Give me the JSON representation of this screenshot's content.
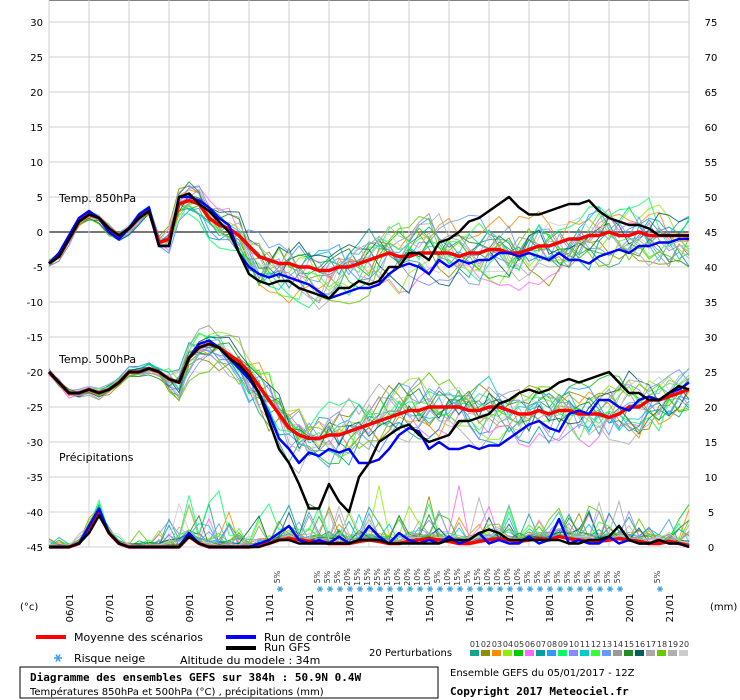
{
  "chart_data": {
    "type": "line",
    "title": "Diagramme des ensembles GEFS sur 384h : 50.9N 0.4W",
    "subtitle": "Températures 850hPa et 500hPa (°C) , précipitations (mm)",
    "left_axis": {
      "unit_label": "(°c)",
      "ticks": [
        30,
        25,
        20,
        15,
        10,
        5,
        0,
        -5,
        -10,
        -15,
        -20,
        -25,
        -30,
        -35,
        -40,
        -45
      ]
    },
    "right_axis": {
      "unit_label": "(mm)",
      "ticks": [
        75,
        70,
        65,
        60,
        55,
        50,
        45,
        40,
        35,
        30,
        25,
        20,
        15,
        10,
        5,
        0
      ]
    },
    "x_dates": [
      "06/01",
      "07/01",
      "08/01",
      "09/01",
      "10/01",
      "11/01",
      "12/01",
      "13/01",
      "14/01",
      "15/01",
      "16/01",
      "17/01",
      "18/01",
      "19/01",
      "20/01",
      "21/01"
    ],
    "panel_labels": {
      "t850": "Temp. 850hPa",
      "t500": "Temp. 500hPa",
      "precip": "Précipitations"
    },
    "x_hours": [
      0,
      6,
      12,
      18,
      24,
      30,
      36,
      42,
      48,
      54,
      60,
      66,
      72,
      78,
      84,
      90,
      96,
      102,
      108,
      114,
      120,
      126,
      132,
      138,
      144,
      150,
      156,
      162,
      168,
      174,
      180,
      186,
      192,
      198,
      204,
      210,
      216,
      222,
      228,
      234,
      240,
      246,
      252,
      258,
      264,
      270,
      276,
      282,
      288,
      294,
      300,
      306,
      312,
      318,
      324,
      330,
      336,
      342,
      348,
      354,
      360,
      366,
      372,
      378,
      384
    ],
    "series": [
      {
        "name": "Moyenne des scénarios",
        "color": "#ff0000",
        "group": "t850",
        "values": [
          -4.5,
          -3.5,
          -1,
          1.5,
          2.5,
          2,
          0.5,
          -0.5,
          0.5,
          2,
          3,
          -1.5,
          -1,
          4,
          4.5,
          4,
          2,
          1,
          0.5,
          -0.5,
          -2,
          -3.5,
          -4,
          -4.5,
          -4.5,
          -5,
          -5,
          -5.5,
          -5.5,
          -5,
          -5,
          -4.5,
          -4,
          -3.5,
          -3,
          -3.5,
          -3.5,
          -3,
          -3,
          -3,
          -3,
          -3.5,
          -3,
          -3,
          -2.5,
          -2.5,
          -3,
          -3,
          -2.5,
          -2,
          -2,
          -1.5,
          -1,
          -1,
          -0.5,
          -0.5,
          0,
          -0.5,
          -0.5,
          0,
          -0.5,
          -0.5,
          -0.5,
          -0.5,
          -0.5
        ]
      },
      {
        "name": "Run de contrôle",
        "color": "#0000ff",
        "group": "t850",
        "values": [
          -4.5,
          -3,
          -0.5,
          2,
          3,
          2,
          0,
          -1,
          0.5,
          2.5,
          3.5,
          -2,
          -2,
          5,
          5,
          4.5,
          3.5,
          2,
          1,
          -3,
          -5,
          -6,
          -6.5,
          -6,
          -6.5,
          -7,
          -7.5,
          -8.5,
          -9.5,
          -9,
          -8.5,
          -8,
          -8,
          -7.5,
          -6,
          -5,
          -4.5,
          -5,
          -6,
          -4,
          -5,
          -4,
          -4.5,
          -4,
          -4,
          -3,
          -3,
          -3.5,
          -3,
          -3.5,
          -4,
          -3,
          -4,
          -4,
          -4.5,
          -3.5,
          -3,
          -2.5,
          -3,
          -2,
          -2,
          -1.5,
          -1.5,
          -1,
          -1
        ]
      },
      {
        "name": "Run GFS",
        "color": "#000000",
        "group": "t850",
        "values": [
          -4.5,
          -3.5,
          -1,
          1.5,
          2.5,
          2,
          0.5,
          -0.5,
          0.5,
          2,
          3,
          -2,
          -2,
          5,
          5.5,
          4,
          3,
          1.5,
          0,
          -3,
          -6,
          -7,
          -7.5,
          -7,
          -7,
          -8,
          -8.5,
          -9,
          -9.5,
          -8,
          -8,
          -7,
          -7.5,
          -7,
          -5,
          -5,
          -3,
          -3,
          -4,
          -1.5,
          -1,
          0,
          1.5,
          2,
          3,
          4,
          5,
          3.5,
          2.5,
          2.5,
          3,
          3.5,
          4,
          4,
          4.5,
          3,
          2,
          1.5,
          1,
          1,
          0.5,
          -0.5,
          -0.5,
          -0.5,
          -0.5
        ]
      },
      {
        "name": "Moyenne des scénarios",
        "color": "#ff0000",
        "group": "t500",
        "values": [
          -20,
          -21.5,
          -23,
          -23,
          -22.5,
          -23,
          -22.5,
          -21.5,
          -20,
          -20,
          -19.5,
          -20,
          -21,
          -21.5,
          -18,
          -16.5,
          -16,
          -16.5,
          -17.5,
          -18.5,
          -20,
          -22,
          -24,
          -26,
          -28,
          -29,
          -29.5,
          -29.5,
          -29,
          -29,
          -28.5,
          -28,
          -27.5,
          -27,
          -26.5,
          -26,
          -25.5,
          -25.5,
          -25,
          -25,
          -25,
          -25,
          -25.5,
          -25.5,
          -25,
          -25,
          -25.5,
          -26,
          -26,
          -25.5,
          -26,
          -25.5,
          -25.5,
          -26,
          -26,
          -26,
          -26.5,
          -26,
          -25,
          -25,
          -24,
          -24,
          -23.5,
          -23,
          -22.5
        ]
      },
      {
        "name": "Run de contrôle",
        "color": "#0000ff",
        "group": "t500",
        "values": [
          -20,
          -21.5,
          -23,
          -23,
          -22.5,
          -23,
          -22.5,
          -21.5,
          -20,
          -20,
          -19.5,
          -20,
          -21,
          -21.5,
          -18,
          -16,
          -15.5,
          -16.5,
          -18,
          -19.5,
          -21,
          -23,
          -26,
          -29.5,
          -31,
          -33,
          -31.5,
          -32,
          -31,
          -31.5,
          -31,
          -33,
          -33,
          -32.5,
          -31,
          -29,
          -28,
          -28.5,
          -31,
          -30,
          -31,
          -31,
          -30.5,
          -31,
          -30.5,
          -30.5,
          -29.5,
          -28.5,
          -27.5,
          -27,
          -28,
          -28.5,
          -26,
          -25.5,
          -26,
          -24,
          -24,
          -25,
          -25.5,
          -24,
          -23.5,
          -24,
          -23,
          -22.5,
          -21.5
        ]
      },
      {
        "name": "Run GFS",
        "color": "#000000",
        "group": "t500",
        "values": [
          -20,
          -21.5,
          -23,
          -23,
          -22.5,
          -23,
          -22.5,
          -21.5,
          -20,
          -20,
          -19.5,
          -20,
          -21,
          -21.5,
          -18,
          -16.5,
          -16,
          -16.5,
          -18,
          -19,
          -20.5,
          -23,
          -27,
          -31,
          -33,
          -36,
          -39.5,
          -39.5,
          -36,
          -38.5,
          -40,
          -35,
          -33,
          -30,
          -29,
          -28,
          -27.5,
          -29,
          -30,
          -29.5,
          -29,
          -27,
          -27,
          -26.5,
          -26,
          -24.5,
          -24,
          -23,
          -22.5,
          -23,
          -22.5,
          -21.5,
          -21,
          -21.5,
          -21,
          -20.5,
          -20,
          -21.5,
          -23,
          -23,
          -24,
          -24,
          -23,
          -22,
          -22.5
        ]
      },
      {
        "name": "Moyenne des scénarios",
        "color": "#ff0000",
        "group": "precip",
        "values": [
          0,
          0,
          0,
          0.5,
          2.5,
          5,
          2,
          0.5,
          0,
          0,
          0,
          0,
          0,
          0,
          1.5,
          0.5,
          0,
          0,
          0,
          0,
          0,
          0.2,
          0.5,
          1,
          1.2,
          1,
          0.8,
          0.8,
          0.5,
          0.5,
          0.5,
          0.8,
          1,
          0.8,
          0.5,
          0.5,
          0.8,
          1,
          1.2,
          1,
          0.8,
          0.5,
          0.5,
          0.8,
          1,
          1.2,
          1,
          0.8,
          1,
          1.2,
          1,
          1.5,
          1.2,
          1,
          0.8,
          0.8,
          1,
          1.2,
          1,
          0.8,
          0.5,
          0.5,
          0.8,
          0.5,
          0.2
        ]
      },
      {
        "name": "Run de contrôle",
        "color": "#0000ff",
        "group": "precip",
        "values": [
          0,
          0,
          0,
          0.5,
          3,
          5.5,
          2,
          0.5,
          0,
          0,
          0,
          0,
          0,
          0,
          2,
          0.5,
          0,
          0,
          0,
          0,
          0,
          0.5,
          1,
          2,
          3,
          1,
          0.5,
          1,
          0.5,
          1.5,
          0.5,
          1,
          3,
          1.5,
          0.5,
          2,
          1,
          0.5,
          1,
          0.5,
          1.5,
          0.5,
          1,
          2,
          0.5,
          1,
          0.5,
          0.5,
          1.5,
          0.5,
          1,
          4,
          0.5,
          1,
          0.5,
          0.5,
          1.5,
          0.5,
          1,
          0.5,
          0.5,
          1,
          0.5,
          0.5,
          0
        ]
      },
      {
        "name": "Run GFS",
        "color": "#000000",
        "group": "precip",
        "values": [
          0,
          0,
          0,
          0.5,
          2,
          4.5,
          2,
          0.5,
          0,
          0,
          0,
          0,
          0,
          0,
          1.5,
          0.5,
          0,
          0,
          0,
          0,
          0,
          0,
          0.5,
          1,
          1,
          0.5,
          0.5,
          0.5,
          0.5,
          0.5,
          0.5,
          1,
          1,
          1,
          0.5,
          0.5,
          0.5,
          0.5,
          0.5,
          0.5,
          1,
          1,
          1,
          2,
          2.5,
          2,
          1,
          1,
          1,
          1,
          1,
          1,
          0.5,
          0.5,
          1,
          1,
          1.5,
          3,
          1,
          0.5,
          0.5,
          1,
          0.5,
          0.5,
          0
        ]
      }
    ],
    "snow_risk_pct": [
      "5%",
      "5%",
      "5%",
      "5%",
      "20%",
      "15%",
      "15%",
      "25%",
      "15%",
      "10%",
      "20%",
      "10%",
      "10%",
      "5%",
      "10%",
      "15%",
      "5%",
      "15%",
      "10%",
      "10%",
      "10%",
      "10%",
      "5%",
      "5%",
      "5%",
      "5%",
      "5%",
      "5%",
      "5%",
      "5%",
      "5%",
      "5%",
      "5%",
      "5%"
    ],
    "legend": {
      "mean": "Moyenne des scénarios",
      "control": "Run de contrôle",
      "gfs": "Run GFS",
      "perturb_label": "20 Perturbations",
      "perturb_nums": [
        "01",
        "02",
        "03",
        "04",
        "05",
        "06",
        "07",
        "08",
        "09",
        "10",
        "11",
        "12",
        "13",
        "14",
        "15",
        "16",
        "17",
        "18",
        "19",
        "20"
      ],
      "perturb_colors": [
        "#17a589",
        "#8e8e00",
        "#ff8c00",
        "#90ee02",
        "#00cc00",
        "#ff66ff",
        "#00a0a0",
        "#3399ff",
        "#00ff66",
        "#8888ff",
        "#00cccc",
        "#33ff33",
        "#6699ff",
        "#999999",
        "#228b22",
        "#005f5f",
        "#aaaaaa",
        "#66cc00",
        "#b0b0b0",
        "#cccccc"
      ],
      "snow": "Risque neige",
      "altitude": "Altitude du modele : 34m"
    },
    "run_info": "Ensemble GEFS du 05/01/2017 - 12Z",
    "copyright": "Copyright 2017 Meteociel.fr",
    "grid": true
  }
}
